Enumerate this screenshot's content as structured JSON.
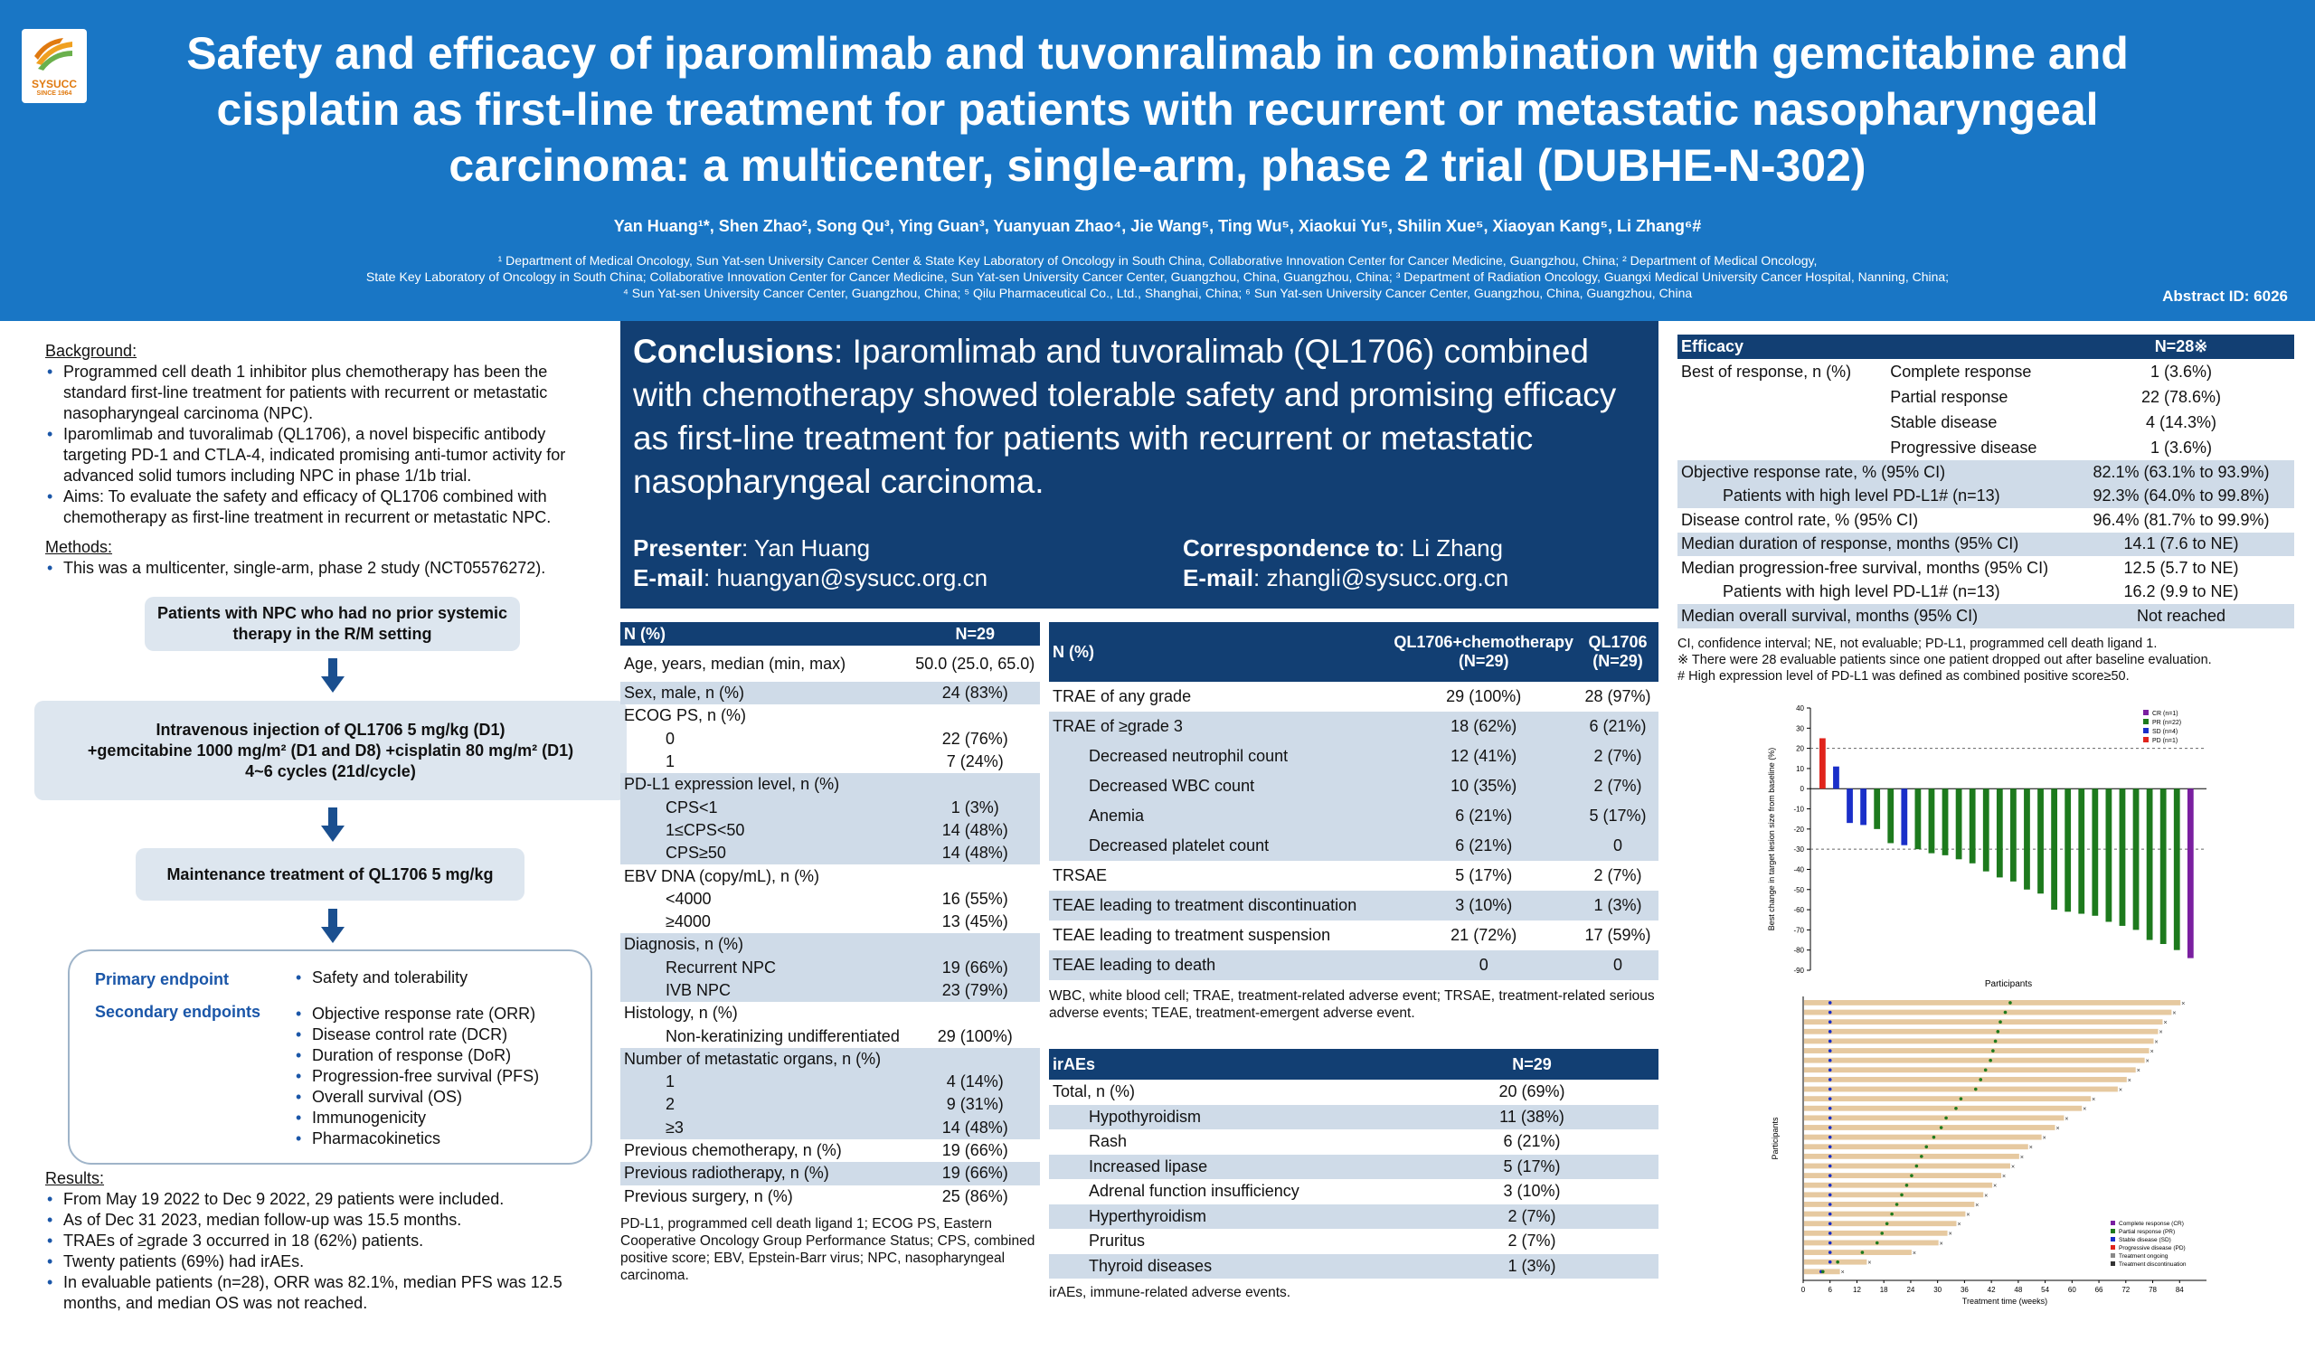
{
  "header": {
    "logo_text": "SYSUCC",
    "logo_year": "SINCE 1964",
    "title": "Safety and efficacy of iparomlimab and tuvonralimab in combination with gemcitabine and cisplatin as first-line treatment for patients with recurrent or metastatic nasopharyngeal carcinoma: a multicenter, single-arm, phase 2 trial (DUBHE-N-302)",
    "authors": "Yan Huang¹*, Shen Zhao², Song Qu³, Ying Guan³, Yuanyuan Zhao⁴, Jie Wang⁵, Ting Wu⁵, Xiaokui Yu⁵, Shilin Xue⁵, Xiaoyan Kang⁵, Li Zhang⁶#",
    "affil_1": "¹ Department of Medical Oncology, Sun Yat-sen University Cancer Center & State Key Laboratory of Oncology in South China, Collaborative Innovation Center for Cancer Medicine, Guangzhou, China; ² Department of Medical Oncology,",
    "affil_2": "State Key Laboratory of Oncology in South China; Collaborative Innovation Center for Cancer Medicine, Sun Yat-sen University Cancer Center, Guangzhou, China, Guangzhou, China; ³ Department of Radiation Oncology, Guangxi Medical University Cancer Hospital, Nanning, China;",
    "affil_3": "⁴ Sun Yat-sen University Cancer Center, Guangzhou, China; ⁵ Qilu Pharmaceutical Co., Ltd., Shanghai, China; ⁶ Sun Yat-sen University Cancer Center, Guangzhou, China, Guangzhou, China",
    "abstract_id": "Abstract ID: 6026"
  },
  "left": {
    "background_h": "Background:",
    "background": [
      "Programmed cell death 1 inhibitor plus chemotherapy has been the standard first-line treatment for patients with recurrent or metastatic nasopharyngeal carcinoma (NPC).",
      "Iparomlimab and tuvoralimab (QL1706), a novel bispecific antibody targeting PD-1 and CTLA-4, indicated promising anti-tumor activity for advanced solid tumors including NPC in phase 1/1b trial.",
      "Aims: To evaluate the safety and efficacy of QL1706 combined with chemotherapy as first-line treatment in recurrent or metastatic NPC."
    ],
    "methods_h": "Methods:",
    "methods": [
      "This was a multicenter, single-arm, phase 2 study (NCT05576272)."
    ],
    "flow_1": "Patients with NPC who had no prior systemic therapy in the R/M setting",
    "flow_2a": "Intravenous injection of QL1706 5 mg/kg (D1)",
    "flow_2b": "+gemcitabine 1000 mg/m² (D1 and D8) +cisplatin 80 mg/m² (D1)",
    "flow_2c": "4~6 cycles (21d/cycle)",
    "flow_3": "Maintenance treatment of QL1706 5 mg/kg",
    "primary_h": "Primary endpoint",
    "secondary_h": "Secondary endpoints",
    "primary": [
      "Safety and tolerability"
    ],
    "secondary": [
      "Objective response rate (ORR)",
      "Disease control rate (DCR)",
      "Duration of response (DoR)",
      "Progression-free survival (PFS)",
      "Overall survival (OS)",
      "Immunogenicity",
      "Pharmacokinetics"
    ],
    "results_h": "Results:",
    "results": [
      "From May 19 2022 to Dec 9 2022, 29 patients were included.",
      "As of Dec 31 2023, median follow-up was 15.5 months.",
      "TRAEs of ≥grade 3 occurred in 18 (62%) patients.",
      "Twenty patients (69%) had irAEs.",
      "In evaluable patients (n=28), ORR was 82.1%, median PFS was 12.5 months, and median OS was not reached."
    ]
  },
  "conclusions": {
    "label": "Conclusions",
    "text": ": Iparomlimab and tuvoralimab (QL1706) combined with chemotherapy showed tolerable safety and promising efficacy as first-line treatment for patients with recurrent or metastatic nasopharyngeal carcinoma.",
    "presenter_l": "Presenter",
    "presenter": ": Yan Huang",
    "email_l": "E-mail",
    "email1": ": huangyan@sysucc.org.cn",
    "corr_l": "Correspondence to",
    "corr": ": Li Zhang",
    "email2": ": zhangli@sysucc.org.cn"
  },
  "baseline": {
    "h1": "N (%)",
    "h2": "N=29",
    "rows": [
      [
        "Age, years, median (min, max)",
        "50.0 (25.0, 65.0)",
        "",
        ""
      ],
      [
        "Sex, male, n (%)",
        "24 (83%)",
        "s",
        ""
      ],
      [
        "ECOG PS, n (%)",
        "",
        "",
        ""
      ],
      [
        "0",
        "22 (76%)",
        "",
        "i"
      ],
      [
        "1",
        "7 (24%)",
        "",
        "i"
      ],
      [
        "PD-L1 expression level, n (%)",
        "",
        "s",
        ""
      ],
      [
        "CPS<1",
        "1 (3%)",
        "s",
        "i"
      ],
      [
        "1≤CPS<50",
        "14 (48%)",
        "s",
        "i"
      ],
      [
        "CPS≥50",
        "14 (48%)",
        "s",
        "i"
      ],
      [
        "EBV DNA (copy/mL), n (%)",
        "",
        "",
        ""
      ],
      [
        "<4000",
        "16 (55%)",
        "",
        "i"
      ],
      [
        "≥4000",
        "13 (45%)",
        "",
        "i"
      ],
      [
        "Diagnosis, n (%)",
        "",
        "s",
        ""
      ],
      [
        "Recurrent NPC",
        "19 (66%)",
        "s",
        "i"
      ],
      [
        "IVB NPC",
        "23 (79%)",
        "s",
        "i"
      ],
      [
        "Histology, n (%)",
        "",
        "",
        ""
      ],
      [
        "Non-keratinizing undifferentiated",
        "29 (100%)",
        "",
        "i"
      ],
      [
        "Number of metastatic organs, n (%)",
        "",
        "s",
        ""
      ],
      [
        "1",
        "4 (14%)",
        "s",
        "i"
      ],
      [
        "2",
        "9 (31%)",
        "s",
        "i"
      ],
      [
        "≥3",
        "14 (48%)",
        "s",
        "i"
      ],
      [
        "Previous chemotherapy, n (%)",
        "19 (66%)",
        "",
        ""
      ],
      [
        "Previous radiotherapy, n (%)",
        "19 (66%)",
        "s",
        ""
      ],
      [
        "Previous surgery, n (%)",
        "25 (86%)",
        "",
        ""
      ]
    ],
    "note": "PD-L1, programmed cell death ligand 1; ECOG PS, Eastern Cooperative Oncology Group Performance Status; CPS, combined positive score; EBV, Epstein-Barr virus; NPC, nasopharyngeal carcinoma."
  },
  "safety": {
    "h1": "N (%)",
    "h2": "QL1706+chemotherapy (N=29)",
    "h3": "QL1706 (N=29)",
    "rows": [
      [
        "TRAE of any grade",
        "29 (100%)",
        "28 (97%)",
        "",
        ""
      ],
      [
        "TRAE of ≥grade 3",
        "18 (62%)",
        "6 (21%)",
        "s",
        ""
      ],
      [
        "Decreased neutrophil count",
        "12 (41%)",
        "2 (7%)",
        "s",
        "i"
      ],
      [
        "Decreased WBC count",
        "10 (35%)",
        "2 (7%)",
        "s",
        "i"
      ],
      [
        "Anemia",
        "6 (21%)",
        "5 (17%)",
        "s",
        "i"
      ],
      [
        "Decreased platelet count",
        "6 (21%)",
        "0",
        "s",
        "i"
      ],
      [
        "TRSAE",
        "5 (17%)",
        "2 (7%)",
        "",
        ""
      ],
      [
        "TEAE leading to treatment discontinuation",
        "3 (10%)",
        "1 (3%)",
        "s",
        ""
      ],
      [
        "TEAE leading to treatment suspension",
        "21 (72%)",
        "17 (59%)",
        "",
        ""
      ],
      [
        "TEAE leading to death",
        "0",
        "0",
        "s",
        ""
      ]
    ],
    "note": "WBC, white blood cell; TRAE, treatment-related adverse event; TRSAE, treatment-related serious adverse events; TEAE, treatment-emergent adverse event."
  },
  "irae": {
    "h1": "irAEs",
    "h2": "N=29",
    "rows": [
      [
        "Total, n (%)",
        "20 (69%)",
        "",
        ""
      ],
      [
        "Hypothyroidism",
        "11 (38%)",
        "s",
        "i"
      ],
      [
        "Rash",
        "6 (21%)",
        "",
        "i"
      ],
      [
        "Increased lipase",
        "5 (17%)",
        "s",
        "i"
      ],
      [
        "Adrenal function insufficiency",
        "3 (10%)",
        "",
        "i"
      ],
      [
        "Hyperthyroidism",
        "2 (7%)",
        "s",
        "i"
      ],
      [
        "Pruritus",
        "2 (7%)",
        "",
        "i"
      ],
      [
        "Thyroid diseases",
        "1 (3%)",
        "s",
        "i"
      ]
    ],
    "note": "irAEs, immune-related adverse events."
  },
  "efficacy": {
    "h1": "Efficacy",
    "h2": "N=28※",
    "best_label": "Best of response, n (%)",
    "best": [
      [
        "Complete response",
        "1 (3.6%)"
      ],
      [
        "Partial response",
        "22 (78.6%)"
      ],
      [
        "Stable disease",
        "4 (14.3%)"
      ],
      [
        "Progressive disease",
        "1 (3.6%)"
      ]
    ],
    "rows": [
      [
        "Objective response rate, % (95% CI)",
        "82.1% (63.1% to 93.9%)",
        "s",
        ""
      ],
      [
        "Patients with high level PD-L1# (n=13)",
        "92.3% (64.0% to 99.8%)",
        "s",
        "i"
      ],
      [
        "Disease control rate, % (95% CI)",
        "96.4% (81.7% to 99.9%)",
        "",
        ""
      ],
      [
        "Median duration of response, months (95% CI)",
        "14.1 (7.6 to NE)",
        "s",
        ""
      ],
      [
        "Median progression-free survival, months (95% CI)",
        "12.5 (5.7 to NE)",
        "",
        ""
      ],
      [
        "Patients with high level PD-L1# (n=13)",
        "16.2 (9.9 to NE)",
        "",
        "i"
      ],
      [
        "Median overall survival, months (95% CI)",
        "Not reached",
        "s",
        ""
      ]
    ],
    "notes": [
      "CI, confidence interval; NE, not evaluable; PD-L1, programmed cell death ligand 1.",
      "※ There were 28 evaluable patients since one patient dropped out after baseline evaluation.",
      "# High expression level of PD-L1 was defined as combined positive score≥50."
    ]
  },
  "chart_data": [
    {
      "type": "bar",
      "title": "",
      "xlabel": "Participants",
      "ylabel": "Best change in target lesion size from baseline (%)",
      "ylim": [
        -90,
        40
      ],
      "yticks": [
        40,
        30,
        20,
        10,
        0,
        -10,
        -20,
        -30,
        -40,
        -50,
        -60,
        -70,
        -80,
        -90
      ],
      "reference_lines": [
        20,
        -30
      ],
      "legend": [
        {
          "name": "CR (n=1)",
          "color": "#7a1fa0"
        },
        {
          "name": "PR (n=22)",
          "color": "#1d7a1d"
        },
        {
          "name": "SD (n=4)",
          "color": "#1a2fc9"
        },
        {
          "name": "PD (n=1)",
          "color": "#e0241c"
        }
      ],
      "values": [
        25,
        11,
        -17,
        -18,
        -20,
        -27,
        -28,
        -30,
        -32,
        -33,
        -35,
        -37,
        -41,
        -44,
        -46,
        -50,
        -52,
        -60,
        -61,
        -62,
        -63,
        -66,
        -68,
        -70,
        -75,
        -77,
        -80,
        -84
      ],
      "response": [
        "PD",
        "SD",
        "SD",
        "SD",
        "PR",
        "PR",
        "SD",
        "PR",
        "PR",
        "PR",
        "PR",
        "PR",
        "PR",
        "PR",
        "PR",
        "PR",
        "PR",
        "PR",
        "PR",
        "PR",
        "PR",
        "PR",
        "PR",
        "PR",
        "PR",
        "PR",
        "PR",
        "CR"
      ]
    },
    {
      "type": "bar",
      "orientation": "horizontal",
      "title": "",
      "xlabel": "Treatment time (weeks)",
      "ylabel": "Participants",
      "xticks": [
        0,
        6,
        12,
        18,
        24,
        30,
        36,
        42,
        48,
        54,
        60,
        66,
        72,
        78,
        84
      ],
      "legend": [
        "Complete response (CR)",
        "Partial response (PR)",
        "Stable disease (SD)",
        "Progressive disease (PD)",
        "Treatment ongoing",
        "Treatment discontinuation"
      ],
      "durations": [
        84,
        82,
        80,
        79,
        78,
        77,
        76,
        74,
        72,
        70,
        64,
        62,
        58,
        56,
        53,
        50,
        48,
        46,
        44,
        42,
        40,
        38,
        36,
        34,
        32,
        30,
        24,
        14,
        8
      ]
    }
  ]
}
